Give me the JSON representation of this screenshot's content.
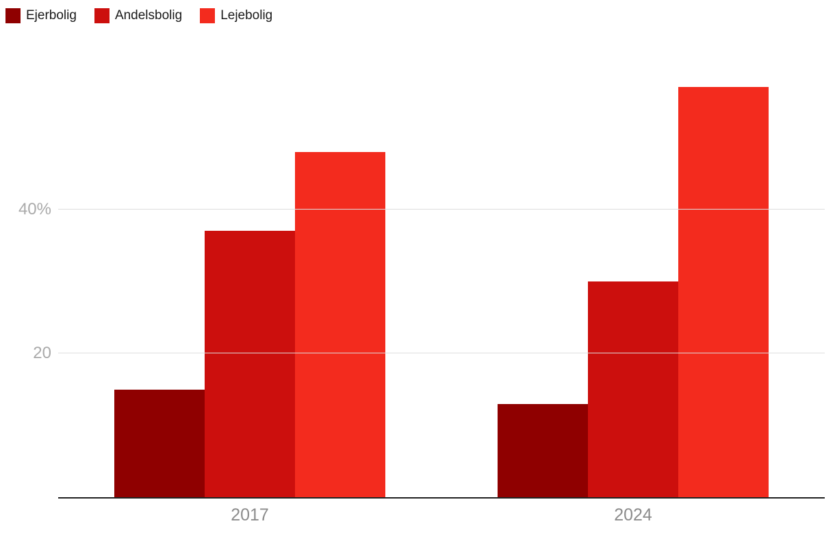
{
  "chart_data": {
    "type": "bar",
    "categories": [
      "2017",
      "2024"
    ],
    "series": [
      {
        "name": "Ejerbolig",
        "color": "#8F0000",
        "values": [
          15,
          13
        ]
      },
      {
        "name": "Andelsbolig",
        "color": "#CC0F0D",
        "values": [
          37,
          30
        ]
      },
      {
        "name": "Lejebolig",
        "color": "#F32B1E",
        "values": [
          48,
          57
        ]
      }
    ],
    "title": "",
    "xlabel": "",
    "ylabel": "",
    "ylim": [
      0,
      62.4
    ],
    "yticks": [
      {
        "value": 20,
        "label": "20"
      },
      {
        "value": 40,
        "label": "40%"
      }
    ],
    "grid": true,
    "legend_position": "top-left",
    "colors": {
      "axis_line": "#222222",
      "gridline": "#dddddd",
      "tick_label": "#aaaaaa",
      "category_label": "#8c8c8c",
      "legend_text": "#1a1a1a",
      "background": "#ffffff"
    }
  }
}
